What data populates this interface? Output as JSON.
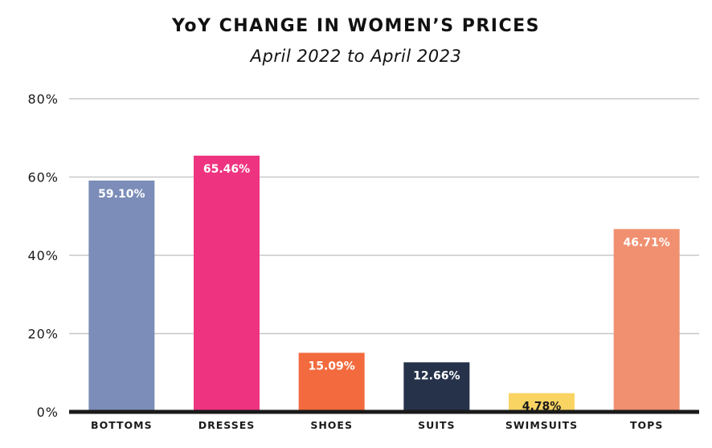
{
  "chart_data": {
    "type": "bar",
    "title": "YoY CHANGE IN WOMEN’S PRICES",
    "subtitle": "April 2022 to April 2023",
    "xlabel": "",
    "ylabel": "",
    "ylim": [
      0,
      80
    ],
    "yticks": [
      0,
      20,
      40,
      60,
      80
    ],
    "ytick_labels": [
      "0%",
      "20%",
      "40%",
      "60%",
      "80%"
    ],
    "grid": true,
    "categories": [
      "BOTTOMS",
      "DRESSES",
      "SHOES",
      "SUITS",
      "SWIMSUITS",
      "TOPS"
    ],
    "values": [
      59.1,
      65.46,
      15.09,
      12.66,
      4.78,
      46.71
    ],
    "data_labels": [
      "59.10%",
      "65.46%",
      "15.09%",
      "12.66%",
      "4.78%",
      "46.71%"
    ],
    "colors": [
      "#7b8db8",
      "#ee3480",
      "#f26a3d",
      "#26324a",
      "#fad463",
      "#f09070"
    ],
    "label_colors": [
      "#ffffff",
      "#ffffff",
      "#ffffff",
      "#ffffff",
      "#1a1a1a",
      "#ffffff"
    ]
  }
}
